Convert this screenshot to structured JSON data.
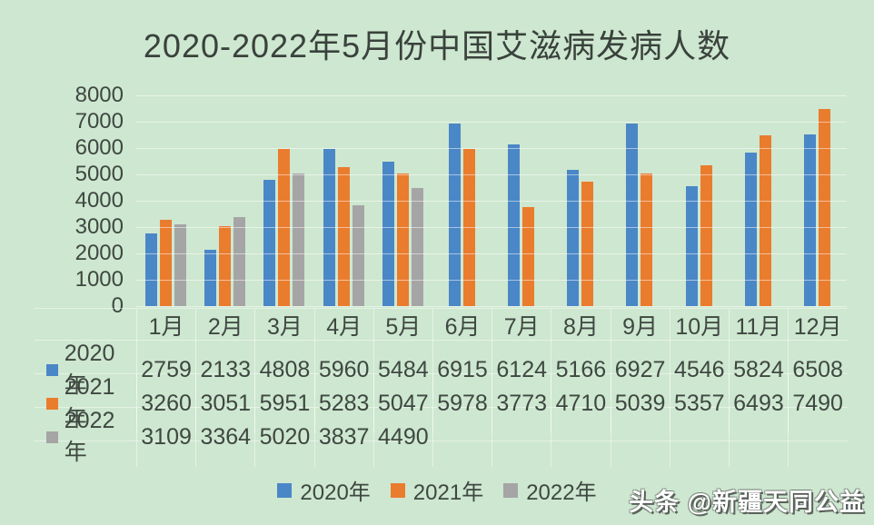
{
  "title": "2020-2022年5月份中国艾滋病发病人数",
  "colors": {
    "background": "#cee7d0",
    "text": "#3b443e",
    "gridline": "rgba(255,255,255,0.5)"
  },
  "chart_data": {
    "type": "bar",
    "title": "2020-2022年5月份中国艾滋病发病人数",
    "categories": [
      "1月",
      "2月",
      "3月",
      "4月",
      "5月",
      "6月",
      "7月",
      "8月",
      "9月",
      "10月",
      "11月",
      "12月"
    ],
    "series": [
      {
        "name": "2020年",
        "color": "#4a87c7",
        "values": [
          2759,
          2133,
          4808,
          5960,
          5484,
          6915,
          6124,
          5166,
          6927,
          4546,
          5824,
          6508
        ]
      },
      {
        "name": "2021年",
        "color": "#ea7c2e",
        "values": [
          3260,
          3051,
          5951,
          5283,
          5047,
          5978,
          3773,
          4710,
          5039,
          5357,
          6493,
          7490
        ]
      },
      {
        "name": "2022年",
        "color": "#a5a5a5",
        "values": [
          3109,
          3364,
          5020,
          3837,
          4490,
          null,
          null,
          null,
          null,
          null,
          null,
          null
        ]
      }
    ],
    "ylim": [
      0,
      8000
    ],
    "yticks": [
      8000,
      7000,
      6000,
      5000,
      4000,
      3000,
      2000,
      1000,
      0
    ],
    "grid": true,
    "legend_position": "bottom",
    "data_table_shown": true
  },
  "legend": {
    "items": [
      "2020年",
      "2021年",
      "2022年"
    ]
  },
  "watermark": {
    "text": "头条 @新疆天同公益"
  }
}
